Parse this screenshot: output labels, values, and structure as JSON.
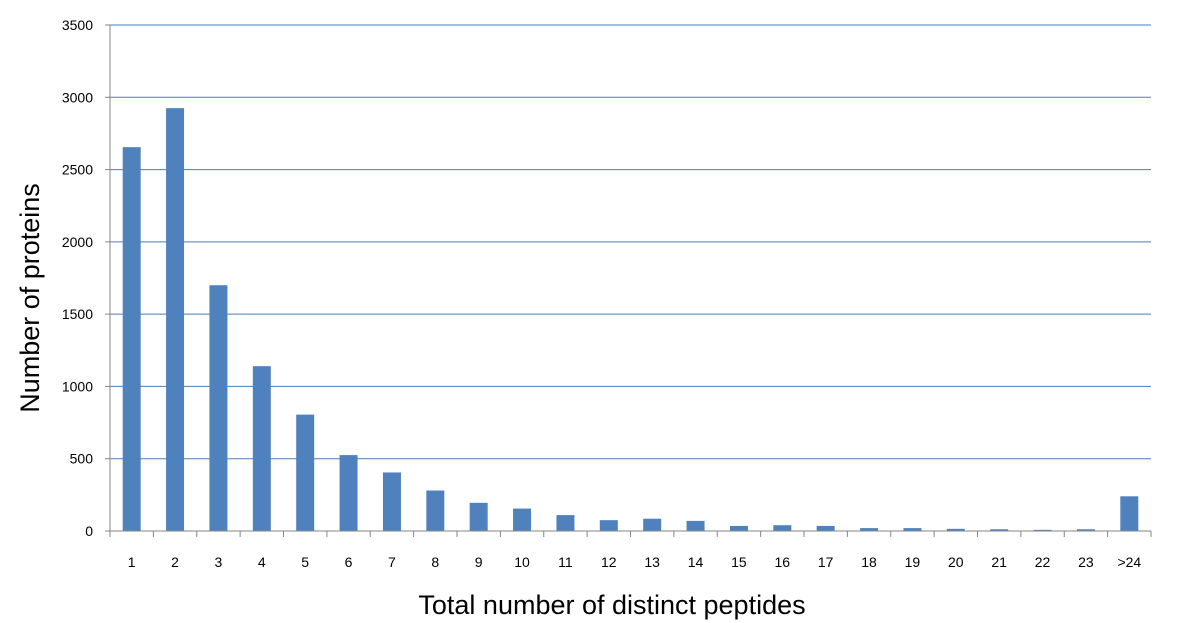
{
  "chart_data": {
    "type": "bar",
    "title": "",
    "xlabel": "Total number of distinct peptides",
    "ylabel": "Number of proteins",
    "categories": [
      "1",
      "2",
      "3",
      "4",
      "5",
      "6",
      "7",
      "8",
      "9",
      "10",
      "11",
      "12",
      "13",
      "14",
      "15",
      "16",
      "17",
      "18",
      "19",
      "20",
      "21",
      "22",
      "23",
      ">24"
    ],
    "values": [
      2655,
      2925,
      1700,
      1140,
      805,
      525,
      405,
      280,
      195,
      155,
      110,
      75,
      85,
      70,
      35,
      40,
      35,
      20,
      20,
      15,
      12,
      8,
      12,
      240
    ],
    "ylim": [
      0,
      3500
    ],
    "yticks": [
      0,
      500,
      1000,
      1500,
      2000,
      2500,
      3000,
      3500
    ],
    "grid": true,
    "legend": "none",
    "colors": {
      "bar": "#4F81BD",
      "grid": "#4A7EBB",
      "axis": "#868686"
    }
  }
}
